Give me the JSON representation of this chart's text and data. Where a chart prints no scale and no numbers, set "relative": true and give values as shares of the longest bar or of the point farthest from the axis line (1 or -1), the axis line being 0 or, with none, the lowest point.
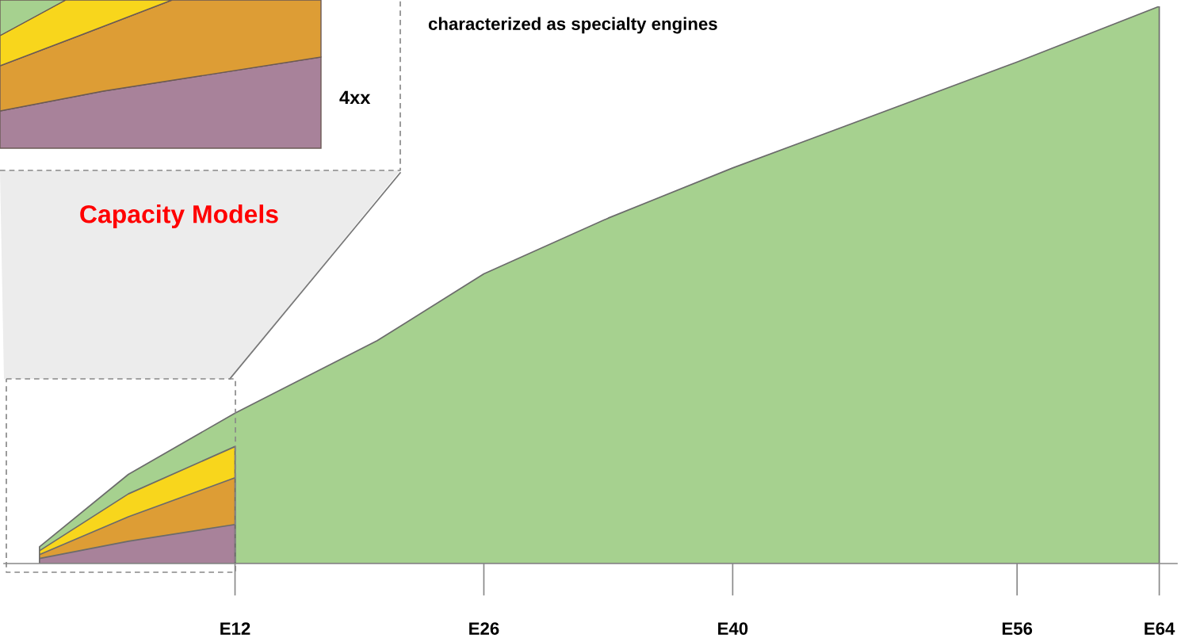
{
  "chart_data": {
    "type": "area",
    "relative": true,
    "categories": [
      null,
      null,
      null,
      null,
      null,
      null,
      null,
      null,
      null,
      null,
      null,
      "E12",
      null,
      null,
      null,
      null,
      null,
      null,
      null,
      null,
      null,
      null,
      null,
      null,
      null,
      "E26",
      null,
      null,
      null,
      null,
      null,
      null,
      null,
      null,
      null,
      null,
      null,
      null,
      null,
      "E40",
      null,
      null,
      null,
      null,
      null,
      null,
      null,
      null,
      null,
      null,
      null,
      null,
      null,
      null,
      null,
      "E56",
      null,
      null,
      null,
      null,
      null,
      null,
      null,
      "E64"
    ],
    "grid": false,
    "legend": false,
    "series": [
      {
        "color": "#a6d18f",
        "values": [
          0.03,
          null,
          null,
          null,
          null,
          0.16,
          null,
          null,
          null,
          null,
          null,
          0.27,
          null,
          null,
          null,
          null,
          null,
          null,
          null,
          0.4,
          null,
          null,
          null,
          null,
          null,
          0.52,
          null,
          null,
          null,
          null,
          null,
          null,
          0.62,
          null,
          null,
          null,
          null,
          null,
          null,
          0.71,
          null,
          null,
          null,
          null,
          null,
          null,
          null,
          null,
          null,
          null,
          null,
          null,
          null,
          null,
          null,
          0.9,
          null,
          null,
          null,
          null,
          null,
          null,
          null,
          1.0
        ]
      },
      {
        "color": "#f8d61c",
        "values": [
          0.023,
          null,
          null,
          null,
          null,
          0.125,
          null,
          null,
          null,
          null,
          null,
          0.21,
          null,
          null,
          null,
          null,
          null,
          null,
          null,
          null,
          null,
          null,
          null,
          null,
          null,
          null,
          null,
          null,
          null,
          null,
          null,
          null,
          null,
          null,
          null,
          null,
          null,
          null,
          null,
          null,
          null,
          null,
          null,
          null,
          null,
          null,
          null,
          null,
          null,
          null,
          null,
          null,
          null,
          null,
          null,
          null,
          null,
          null,
          null,
          null,
          null,
          null,
          null,
          null
        ]
      },
      {
        "color": "#dd9d35",
        "values": [
          0.016,
          null,
          null,
          null,
          null,
          0.084,
          null,
          null,
          null,
          null,
          null,
          0.154,
          null,
          null,
          null,
          null,
          null,
          null,
          null,
          null,
          null,
          null,
          null,
          null,
          null,
          null,
          null,
          null,
          null,
          null,
          null,
          null,
          null,
          null,
          null,
          null,
          null,
          null,
          null,
          null,
          null,
          null,
          null,
          null,
          null,
          null,
          null,
          null,
          null,
          null,
          null,
          null,
          null,
          null,
          null,
          null,
          null,
          null,
          null,
          null,
          null,
          null,
          null,
          null
        ]
      },
      {
        "color": "#a8829a",
        "values": [
          0.009,
          null,
          null,
          null,
          null,
          0.04,
          null,
          null,
          null,
          null,
          null,
          0.07,
          null,
          null,
          null,
          null,
          null,
          null,
          null,
          null,
          null,
          null,
          null,
          null,
          null,
          null,
          null,
          null,
          null,
          null,
          null,
          null,
          null,
          null,
          null,
          null,
          null,
          null,
          null,
          null,
          null,
          null,
          null,
          null,
          null,
          null,
          null,
          null,
          null,
          null,
          null,
          null,
          null,
          null,
          null,
          null,
          null,
          null,
          null,
          null,
          null,
          null,
          null,
          null
        ]
      }
    ],
    "annotations": [
      "4xx",
      "characterized as specialty engines",
      "Capacity Models"
    ]
  }
}
